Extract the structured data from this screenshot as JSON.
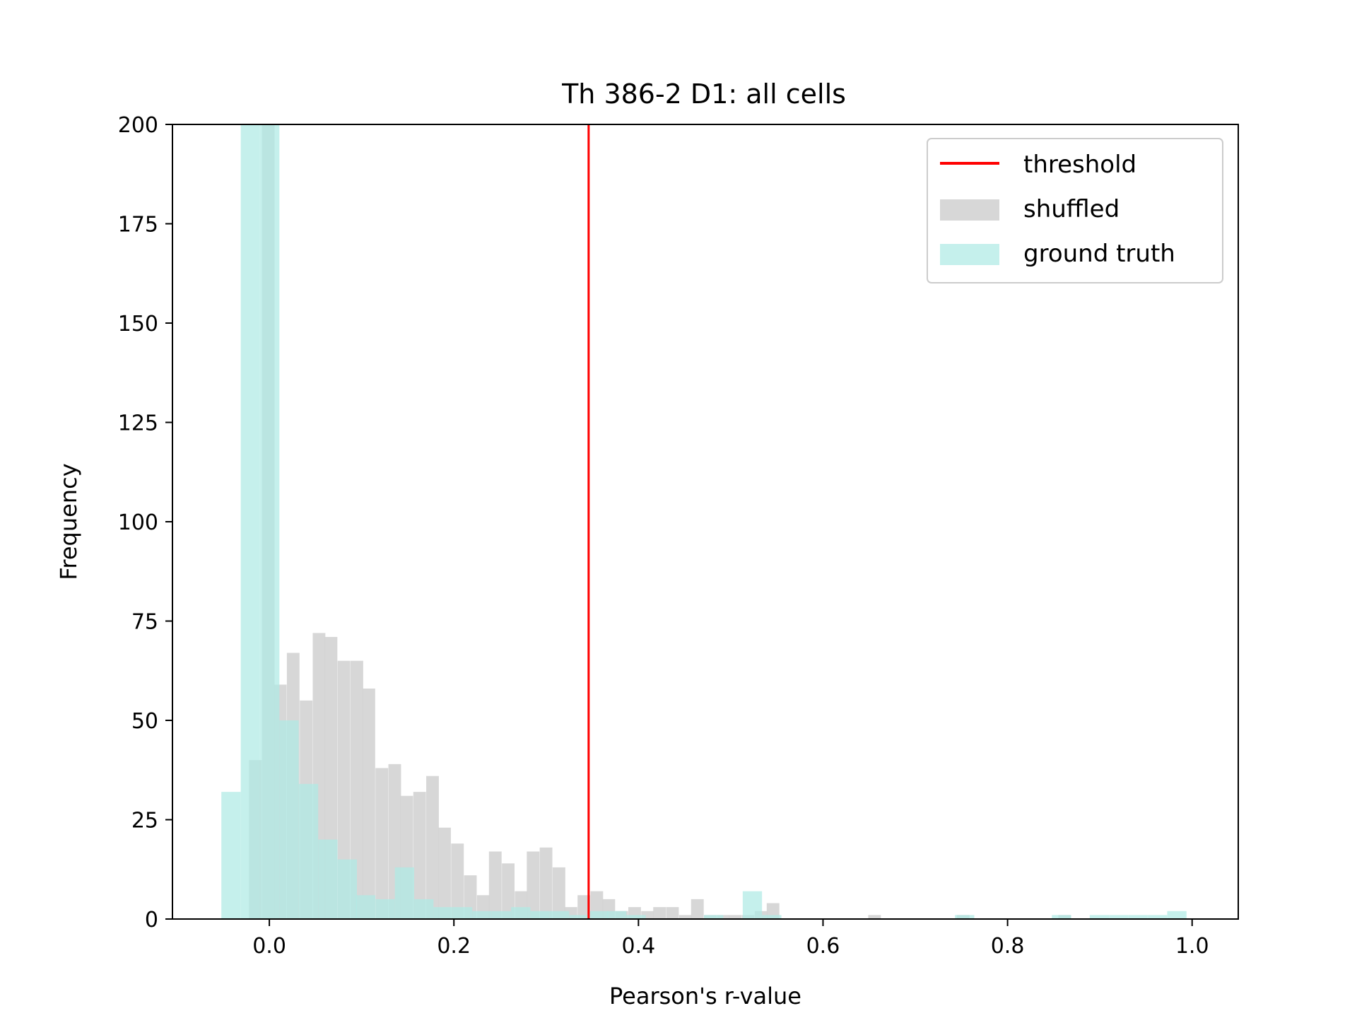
{
  "chart_data": {
    "type": "bar",
    "title": "Th 386-2 D1: all cells",
    "xlabel": "Pearson's r-value",
    "ylabel": "Frequency",
    "xlim": [
      -0.105,
      1.05
    ],
    "ylim": [
      0,
      200
    ],
    "xticks": [
      0.0,
      0.2,
      0.4,
      0.6,
      0.8,
      1.0
    ],
    "xtick_labels": [
      "0.0",
      "0.2",
      "0.4",
      "0.6",
      "0.8",
      "1.0"
    ],
    "yticks": [
      0,
      25,
      50,
      75,
      100,
      125,
      150,
      175,
      200
    ],
    "ytick_labels": [
      "0",
      "25",
      "50",
      "75",
      "100",
      "125",
      "150",
      "175",
      "200"
    ],
    "legend_position": "top-right",
    "threshold": {
      "name": "threshold",
      "x": 0.346,
      "color": "#ff0000"
    },
    "series": [
      {
        "name": "shuffled",
        "color": "#d3d3d3",
        "opacity": 0.9,
        "bin_width": 0.0137,
        "bins": [
          [
            -0.022,
            40
          ],
          [
            -0.008,
            200
          ],
          [
            0.005,
            59
          ],
          [
            0.019,
            67
          ],
          [
            0.033,
            55
          ],
          [
            0.047,
            72
          ],
          [
            0.06,
            71
          ],
          [
            0.074,
            65
          ],
          [
            0.088,
            65
          ],
          [
            0.101,
            58
          ],
          [
            0.115,
            38
          ],
          [
            0.129,
            39
          ],
          [
            0.142,
            31
          ],
          [
            0.156,
            32
          ],
          [
            0.17,
            36
          ],
          [
            0.183,
            23
          ],
          [
            0.197,
            19
          ],
          [
            0.211,
            11
          ],
          [
            0.225,
            6
          ],
          [
            0.238,
            17
          ],
          [
            0.252,
            14
          ],
          [
            0.266,
            7
          ],
          [
            0.279,
            17
          ],
          [
            0.293,
            18
          ],
          [
            0.307,
            13
          ],
          [
            0.32,
            3
          ],
          [
            0.334,
            6
          ],
          [
            0.348,
            7
          ],
          [
            0.361,
            5
          ],
          [
            0.375,
            2
          ],
          [
            0.389,
            3
          ],
          [
            0.403,
            2
          ],
          [
            0.416,
            3
          ],
          [
            0.43,
            3
          ],
          [
            0.444,
            1
          ],
          [
            0.457,
            5
          ],
          [
            0.471,
            1
          ],
          [
            0.485,
            1
          ],
          [
            0.498,
            1
          ],
          [
            0.512,
            1
          ],
          [
            0.526,
            2
          ],
          [
            0.539,
            4
          ],
          [
            0.649,
            1
          ],
          [
            0.745,
            1
          ],
          [
            0.855,
            1
          ]
        ]
      },
      {
        "name": "ground truth",
        "color": "#aeeae4",
        "opacity": 0.72,
        "bin_width": 0.0209,
        "bins": [
          [
            -0.052,
            32
          ],
          [
            -0.031,
            200
          ],
          [
            -0.01,
            200
          ],
          [
            0.011,
            50
          ],
          [
            0.032,
            34
          ],
          [
            0.053,
            20
          ],
          [
            0.074,
            15
          ],
          [
            0.094,
            6
          ],
          [
            0.115,
            5
          ],
          [
            0.136,
            13
          ],
          [
            0.157,
            5
          ],
          [
            0.178,
            3
          ],
          [
            0.199,
            3
          ],
          [
            0.22,
            2
          ],
          [
            0.241,
            2
          ],
          [
            0.262,
            3
          ],
          [
            0.283,
            2
          ],
          [
            0.304,
            2
          ],
          [
            0.325,
            1
          ],
          [
            0.346,
            2
          ],
          [
            0.366,
            2
          ],
          [
            0.387,
            1
          ],
          [
            0.471,
            1
          ],
          [
            0.513,
            7
          ],
          [
            0.534,
            1
          ],
          [
            0.743,
            1
          ],
          [
            0.848,
            1
          ],
          [
            0.889,
            1
          ],
          [
            0.91,
            1
          ],
          [
            0.931,
            1
          ],
          [
            0.952,
            1
          ],
          [
            0.973,
            2
          ]
        ]
      }
    ]
  }
}
